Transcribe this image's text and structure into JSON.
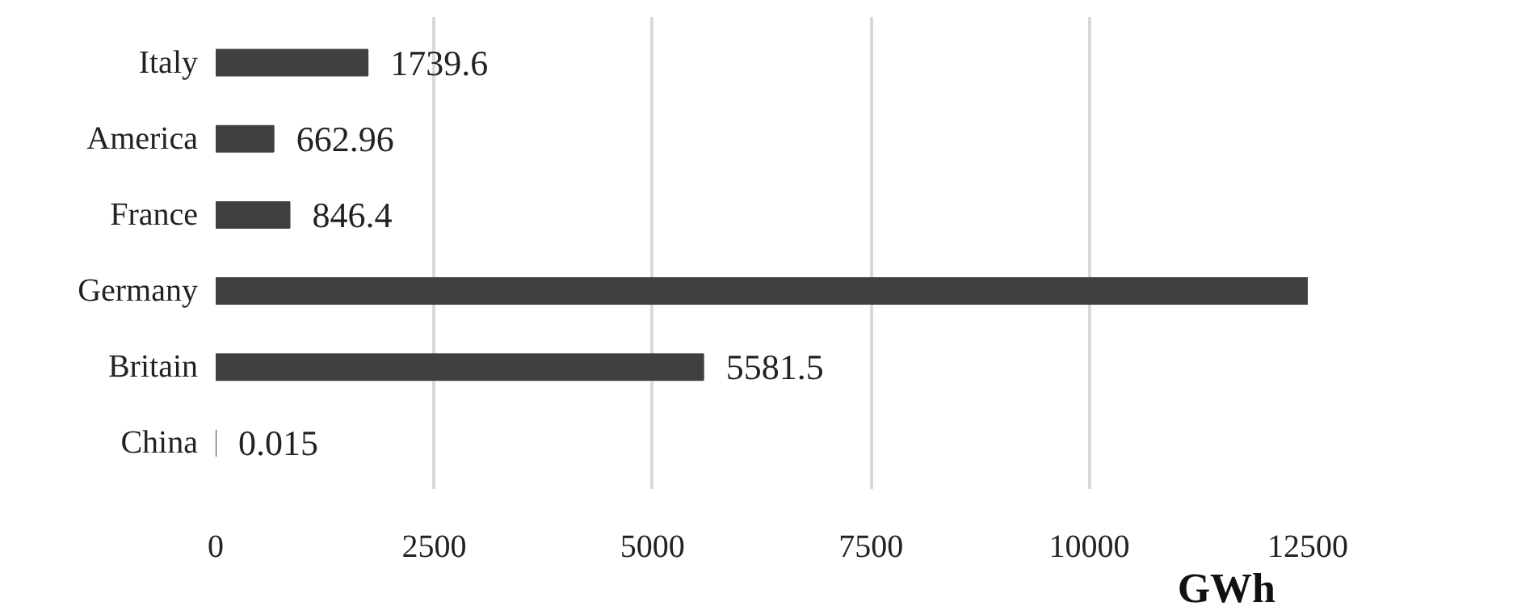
{
  "chart_data": {
    "type": "bar",
    "orientation": "horizontal",
    "xlabel": "GWh",
    "categories": [
      "Italy",
      "America",
      "France",
      "Germany",
      "Britain",
      "China"
    ],
    "values": [
      1739.6,
      662.96,
      846.4,
      12500,
      5581.5,
      0.015
    ],
    "value_labels": [
      "1739.6",
      "662.96",
      "846.4",
      null,
      "5581.5",
      "0.015"
    ],
    "color": "#404040",
    "xlim": [
      0,
      12500
    ],
    "xticks": [
      0,
      2500,
      5000,
      7500,
      10000,
      12500
    ],
    "grid": "x"
  }
}
